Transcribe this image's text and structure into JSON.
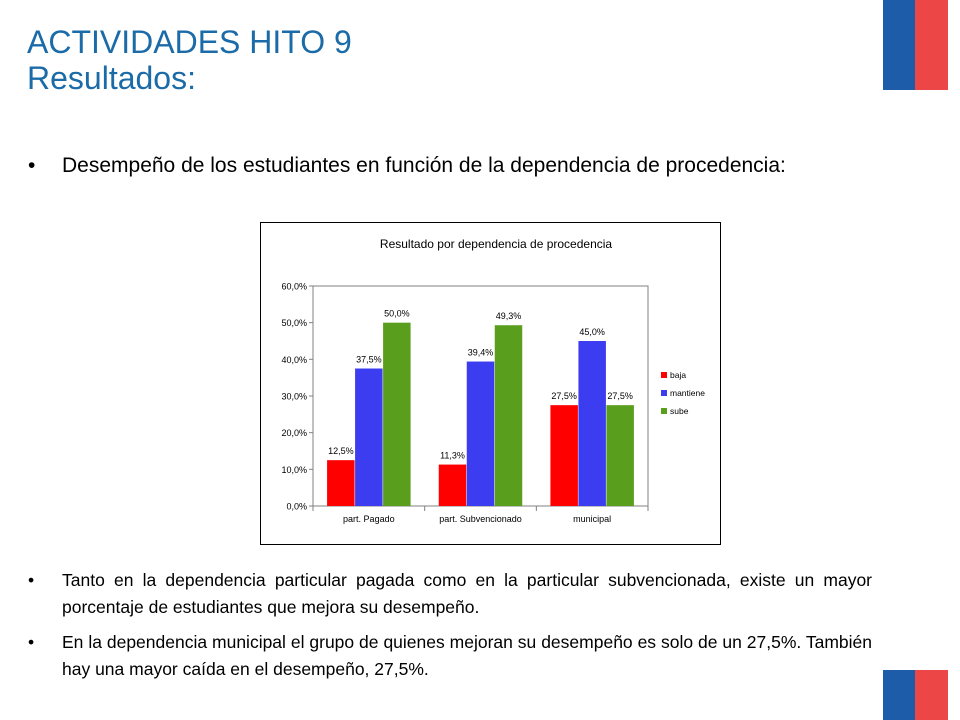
{
  "slide": {
    "title": "ACTIVIDADES HITO 9",
    "subtitle": "Resultados:",
    "bullets": [
      "Desempeño de los estudiantes en función de la dependencia de procedencia:",
      "Tanto en la dependencia particular pagada como en la particular subvencionada, existe un mayor porcentaje de estudiantes que mejora su desempeño.",
      "En la dependencia municipal el grupo de quienes mejoran su desempeño es solo de un 27,5%. También hay una mayor caída en el desempeño, 27,5%."
    ],
    "bullet_char": "•",
    "colors": {
      "title": "#1b6ba8",
      "flag_blue": "#1c5ca8",
      "flag_red": "#ec4646"
    }
  },
  "chart_data": {
    "type": "bar",
    "title": "Resultado por dependencia de procedencia",
    "categories": [
      "part. Pagado",
      "part. Subvencionado",
      "municipal"
    ],
    "series": [
      {
        "name": "baja",
        "color": "#ff0000",
        "values": [
          12.5,
          11.3,
          27.5
        ],
        "labels": [
          "12,5%",
          "11,3%",
          "27,5%"
        ]
      },
      {
        "name": "mantiene",
        "color": "#3c3cf0",
        "values": [
          37.5,
          39.4,
          45.0
        ],
        "labels": [
          "37,5%",
          "39,4%",
          "45,0%"
        ]
      },
      {
        "name": "sube",
        "color": "#5a9e1e",
        "values": [
          50.0,
          49.3,
          27.5
        ],
        "labels": [
          "50,0%",
          "49,3%",
          "27,5%"
        ]
      }
    ],
    "ylim": [
      0,
      60
    ],
    "yticks": [
      "0,0%",
      "10,0%",
      "20,0%",
      "30,0%",
      "40,0%",
      "50,0%",
      "60,0%"
    ],
    "grid": false,
    "legend": "right",
    "xlabel": "",
    "ylabel": ""
  }
}
